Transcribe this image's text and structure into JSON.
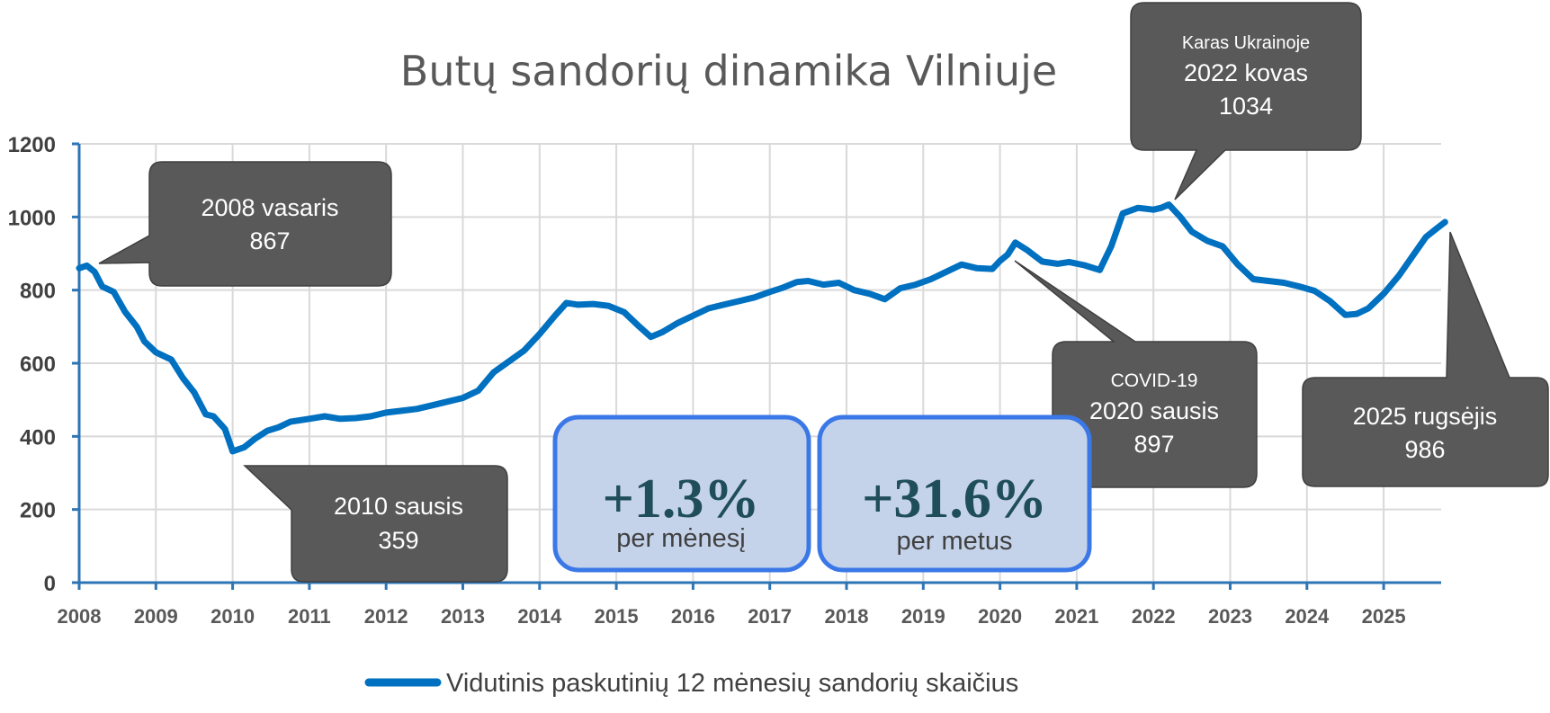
{
  "chart_data": {
    "type": "line",
    "title": "Butų sandorių dinamika Vilniuje",
    "xlabel": "",
    "ylabel": "",
    "ylim": [
      0,
      1200
    ],
    "yticks": [
      "0",
      "200",
      "400",
      "600",
      "800",
      "1000",
      "1200"
    ],
    "xlim": [
      2008,
      2025.9
    ],
    "xticks": [
      "2008",
      "2009",
      "2010",
      "2011",
      "2012",
      "2013",
      "2014",
      "2015",
      "2016",
      "2017",
      "2018",
      "2019",
      "2020",
      "2021",
      "2022",
      "2023",
      "2024",
      "2025"
    ],
    "grid": true,
    "legend": "bottom",
    "series": [
      {
        "name": "Vidutinis paskutinių 12 mėnesių sandorių skaičius",
        "color": "#0070c0",
        "points": [
          [
            2008.0,
            860
          ],
          [
            2008.1,
            867
          ],
          [
            2008.2,
            850
          ],
          [
            2008.3,
            810
          ],
          [
            2008.45,
            795
          ],
          [
            2008.6,
            740
          ],
          [
            2008.75,
            700
          ],
          [
            2008.85,
            660
          ],
          [
            2009.0,
            630
          ],
          [
            2009.2,
            610
          ],
          [
            2009.35,
            560
          ],
          [
            2009.5,
            520
          ],
          [
            2009.65,
            460
          ],
          [
            2009.75,
            455
          ],
          [
            2009.9,
            420
          ],
          [
            2010.0,
            359
          ],
          [
            2010.15,
            370
          ],
          [
            2010.3,
            395
          ],
          [
            2010.45,
            415
          ],
          [
            2010.6,
            425
          ],
          [
            2010.75,
            440
          ],
          [
            2011.0,
            448
          ],
          [
            2011.2,
            455
          ],
          [
            2011.4,
            448
          ],
          [
            2011.6,
            450
          ],
          [
            2011.8,
            455
          ],
          [
            2012.0,
            465
          ],
          [
            2012.2,
            470
          ],
          [
            2012.4,
            475
          ],
          [
            2012.6,
            485
          ],
          [
            2012.8,
            495
          ],
          [
            2013.0,
            505
          ],
          [
            2013.2,
            525
          ],
          [
            2013.4,
            575
          ],
          [
            2013.6,
            605
          ],
          [
            2013.8,
            635
          ],
          [
            2014.0,
            680
          ],
          [
            2014.2,
            730
          ],
          [
            2014.35,
            765
          ],
          [
            2014.5,
            760
          ],
          [
            2014.7,
            762
          ],
          [
            2014.9,
            757
          ],
          [
            2015.1,
            740
          ],
          [
            2015.3,
            700
          ],
          [
            2015.45,
            672
          ],
          [
            2015.6,
            685
          ],
          [
            2015.8,
            710
          ],
          [
            2016.0,
            730
          ],
          [
            2016.2,
            750
          ],
          [
            2016.4,
            760
          ],
          [
            2016.6,
            770
          ],
          [
            2016.8,
            780
          ],
          [
            2017.0,
            795
          ],
          [
            2017.15,
            805
          ],
          [
            2017.35,
            822
          ],
          [
            2017.5,
            825
          ],
          [
            2017.7,
            815
          ],
          [
            2017.9,
            820
          ],
          [
            2018.1,
            800
          ],
          [
            2018.3,
            790
          ],
          [
            2018.5,
            775
          ],
          [
            2018.7,
            805
          ],
          [
            2018.9,
            815
          ],
          [
            2019.1,
            830
          ],
          [
            2019.3,
            850
          ],
          [
            2019.5,
            870
          ],
          [
            2019.7,
            860
          ],
          [
            2019.9,
            858
          ],
          [
            2020.0,
            880
          ],
          [
            2020.1,
            897
          ],
          [
            2020.2,
            930
          ],
          [
            2020.35,
            910
          ],
          [
            2020.55,
            878
          ],
          [
            2020.75,
            872
          ],
          [
            2020.9,
            877
          ],
          [
            2021.1,
            868
          ],
          [
            2021.3,
            855
          ],
          [
            2021.45,
            920
          ],
          [
            2021.6,
            1010
          ],
          [
            2021.8,
            1025
          ],
          [
            2022.0,
            1020
          ],
          [
            2022.1,
            1025
          ],
          [
            2022.2,
            1034
          ],
          [
            2022.35,
            1000
          ],
          [
            2022.5,
            960
          ],
          [
            2022.7,
            935
          ],
          [
            2022.9,
            920
          ],
          [
            2023.1,
            870
          ],
          [
            2023.3,
            830
          ],
          [
            2023.5,
            825
          ],
          [
            2023.7,
            820
          ],
          [
            2023.9,
            810
          ],
          [
            2024.1,
            798
          ],
          [
            2024.3,
            770
          ],
          [
            2024.5,
            732
          ],
          [
            2024.65,
            735
          ],
          [
            2024.8,
            750
          ],
          [
            2025.0,
            790
          ],
          [
            2025.2,
            840
          ],
          [
            2025.4,
            900
          ],
          [
            2025.55,
            945
          ],
          [
            2025.7,
            970
          ],
          [
            2025.8,
            986
          ]
        ]
      }
    ],
    "annotations": [
      {
        "id": "2008",
        "lines": [
          "2008 vasaris",
          "867"
        ]
      },
      {
        "id": "2010",
        "lines": [
          "2010 sausis",
          "359"
        ]
      },
      {
        "id": "covid",
        "lines": [
          "COVID-19",
          "2020 sausis",
          "897"
        ]
      },
      {
        "id": "war",
        "lines": [
          "Karas Ukrainoje",
          "2022 kovas",
          "1034"
        ]
      },
      {
        "id": "2025",
        "lines": [
          "2025 rugsėjis",
          "986"
        ]
      }
    ],
    "stats": [
      {
        "value": "+1.3%",
        "label": "per mėnesį"
      },
      {
        "value": "+31.6%",
        "label": "per metus"
      }
    ]
  }
}
